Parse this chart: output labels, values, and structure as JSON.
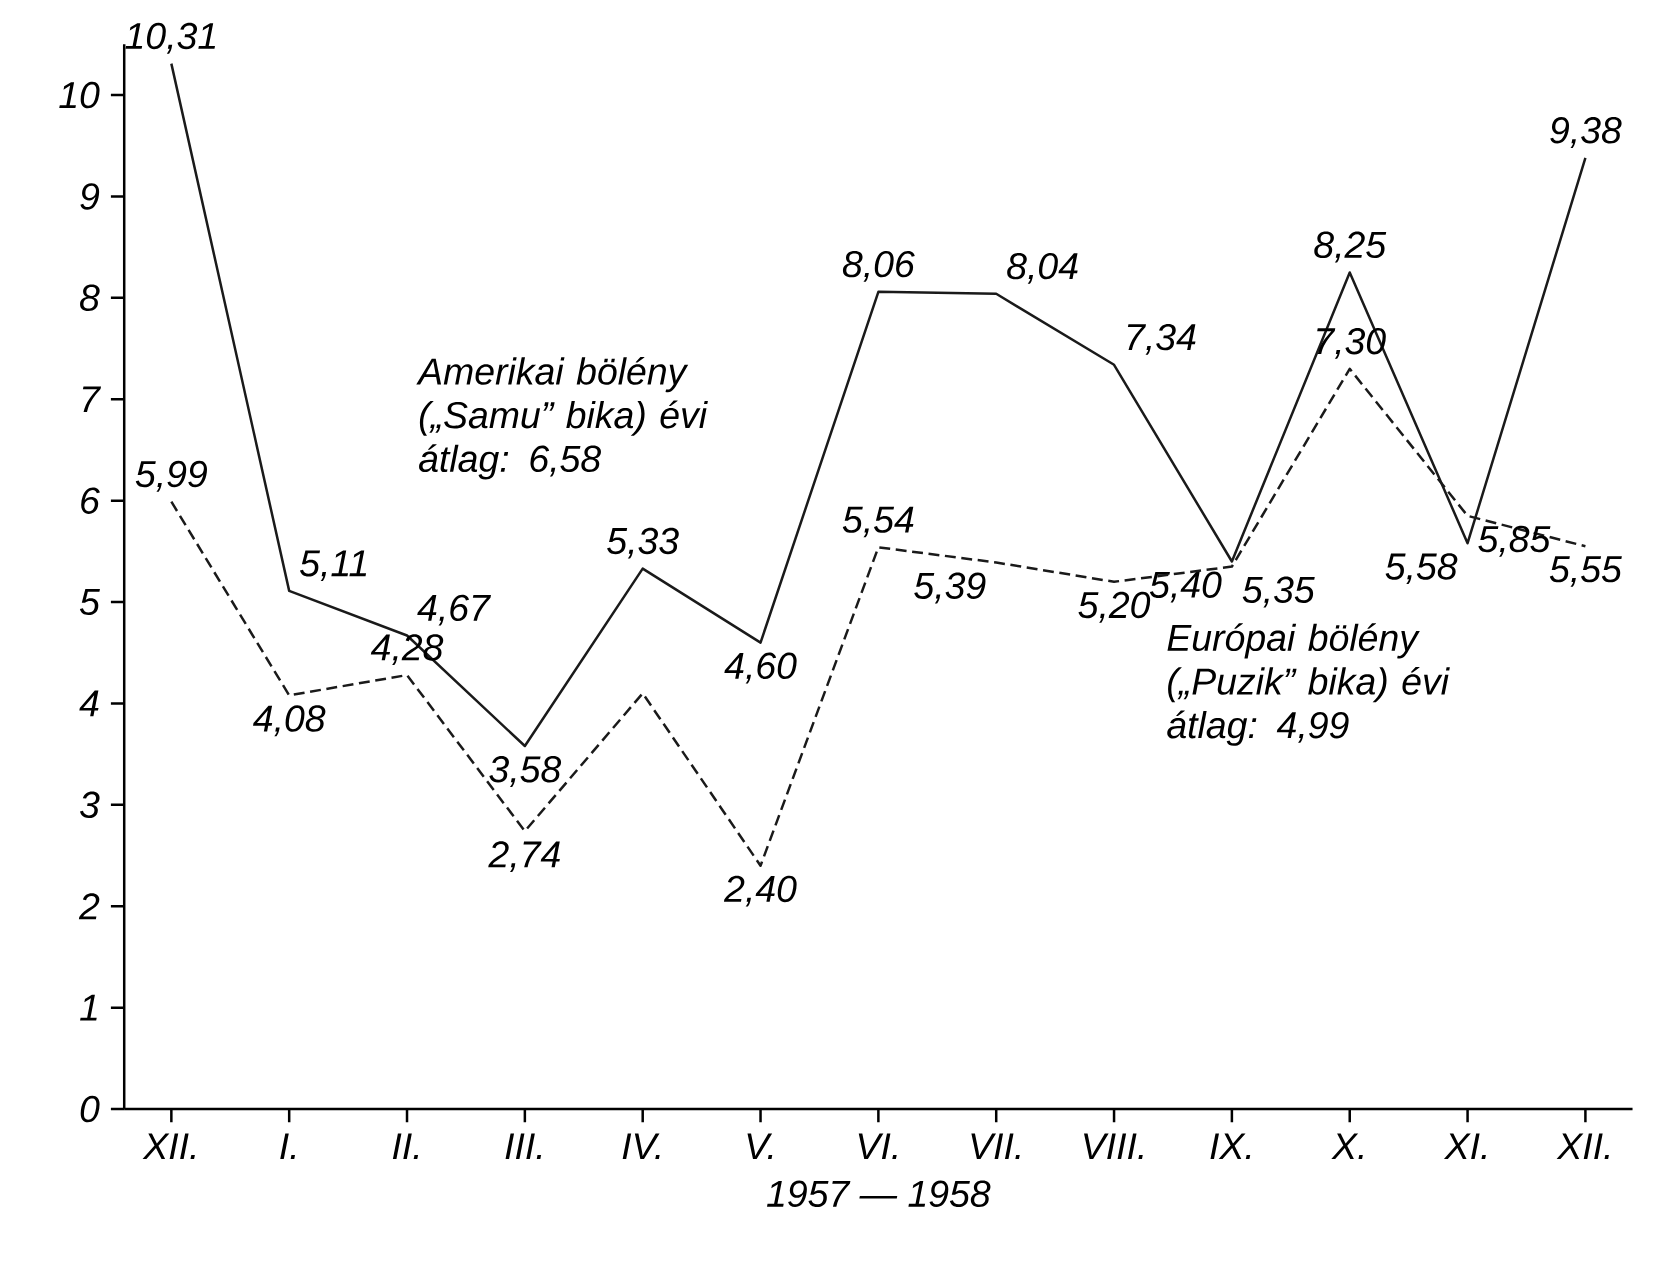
{
  "chart_data": {
    "type": "line",
    "xlabel": "1957 — 1958",
    "categories": [
      "XII.",
      "I.",
      "II.",
      "III.",
      "IV.",
      "V.",
      "VI.",
      "VII.",
      "VIII.",
      "IX.",
      "X.",
      "XI.",
      "XII."
    ],
    "series": [
      {
        "name": "Amerikai bölény („Samu” bika) évi átlag: 6,58",
        "color": "#1a1a1a",
        "line_style": "solid",
        "values": [
          10.31,
          5.11,
          4.67,
          3.58,
          5.33,
          4.6,
          8.06,
          8.04,
          7.34,
          5.4,
          8.25,
          5.58,
          9.38
        ],
        "value_labels": [
          "10,31",
          "5,11",
          "4,67",
          "3,58",
          "5,33",
          "4,60",
          "8,06",
          "8,04",
          "7,34",
          "5,40",
          "8,25",
          "5,58",
          "9,38"
        ]
      },
      {
        "name": "Európai bölény („Puzik” bika) évi átlag: 4,99",
        "color": "#1a1a1a",
        "line_style": "dashed",
        "values": [
          5.99,
          4.08,
          4.28,
          2.74,
          4.1,
          2.4,
          5.54,
          5.39,
          5.2,
          5.35,
          7.3,
          5.85,
          5.55
        ],
        "value_labels": [
          "5,99",
          "4,08",
          "4,28",
          "2,74",
          null,
          "2,40",
          "5,54",
          "5,39",
          "5,20",
          "5,35",
          "7,30",
          "5,85",
          "5,55"
        ]
      }
    ],
    "ylim": [
      0,
      10.5
    ],
    "yticks": [
      0,
      1,
      2,
      3,
      4,
      5,
      6,
      7,
      8,
      9,
      10
    ],
    "grid": false,
    "legend": false,
    "marker": "none"
  }
}
